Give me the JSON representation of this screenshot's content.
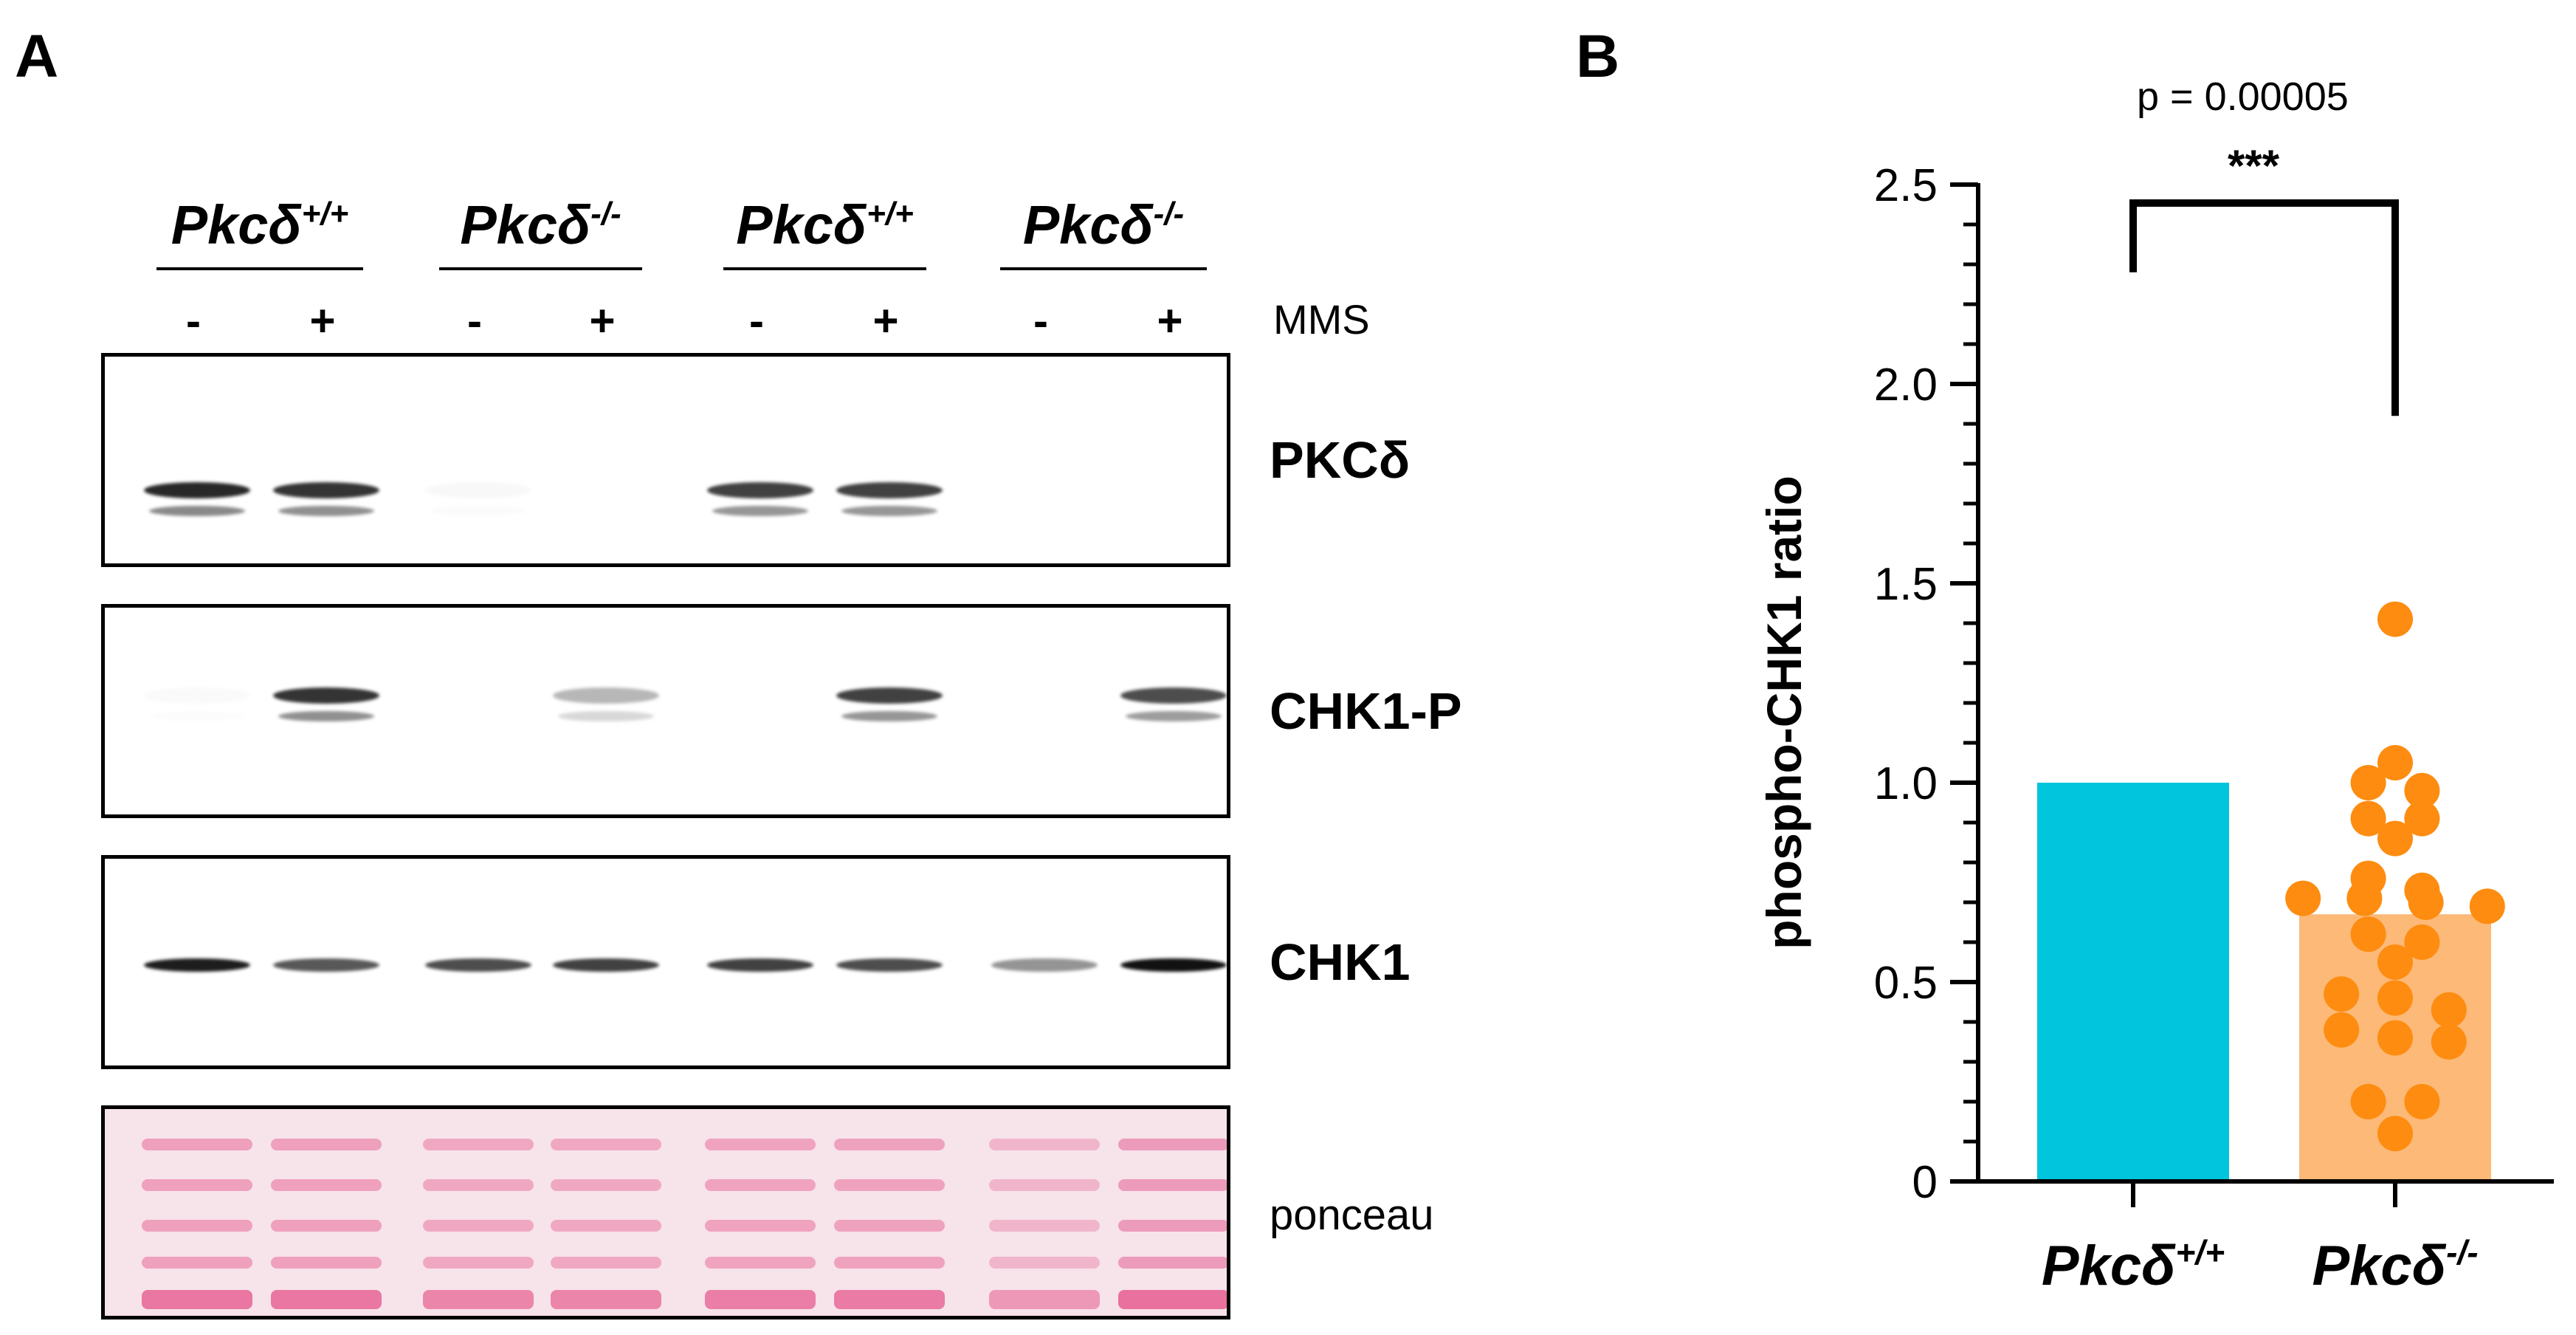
{
  "panels": {
    "a": "A",
    "b": "B"
  },
  "blot": {
    "genotypes": [
      {
        "base": "Pkcδ",
        "sup": "+/+"
      },
      {
        "base": "Pkcδ",
        "sup": "-/-"
      },
      {
        "base": "Pkcδ",
        "sup": "+/+"
      },
      {
        "base": "Pkcδ",
        "sup": "-/-"
      }
    ],
    "treatment_label": "MMS",
    "lanes": [
      "-",
      "+",
      "-",
      "+",
      "-",
      "+",
      "-",
      "+"
    ],
    "rows": [
      {
        "label": "PKCδ",
        "intensity": [
          0.9,
          0.85,
          0.03,
          0.0,
          0.8,
          0.8,
          0.0,
          0.0
        ]
      },
      {
        "label": "CHK1-P",
        "intensity": [
          0.02,
          0.85,
          0.0,
          0.3,
          0.0,
          0.8,
          0.0,
          0.75
        ]
      },
      {
        "label": "CHK1",
        "intensity": [
          0.95,
          0.7,
          0.75,
          0.8,
          0.8,
          0.75,
          0.45,
          1.0
        ]
      },
      {
        "label": "ponceau",
        "intensity": [
          0.9,
          0.9,
          0.7,
          0.7,
          0.8,
          0.85,
          0.4,
          1.0
        ]
      }
    ],
    "colors": {
      "band": "#111111",
      "ponceau": "#e23d7a"
    }
  },
  "chart_data": {
    "type": "bar",
    "categories": [
      {
        "base": "Pkcδ",
        "sup": "+/+"
      },
      {
        "base": "Pkcδ",
        "sup": "-/-"
      }
    ],
    "values": [
      1.0,
      0.67
    ],
    "points": [
      [],
      [
        1.41,
        1.05,
        1.0,
        0.98,
        0.91,
        0.91,
        0.86,
        0.76,
        0.73,
        0.71,
        0.71,
        0.7,
        0.69,
        0.62,
        0.6,
        0.55,
        0.47,
        0.46,
        0.43,
        0.38,
        0.36,
        0.35,
        0.2,
        0.2,
        0.12
      ]
    ],
    "ylabel": "phospho-CHK1 ratio",
    "ylim": [
      0,
      2.5
    ],
    "yticks": [
      "0",
      "0.5",
      "1.0",
      "1.5",
      "2.0",
      "2.5"
    ],
    "yticks_values": [
      0,
      0.5,
      1.0,
      1.5,
      2.0,
      2.5
    ],
    "colors": {
      "bar1": "#00c5dc",
      "bar2": "#fcb978",
      "points": "#fd8c10"
    },
    "significance": {
      "pvalue": "p = 0.00005",
      "stars": "***"
    }
  }
}
